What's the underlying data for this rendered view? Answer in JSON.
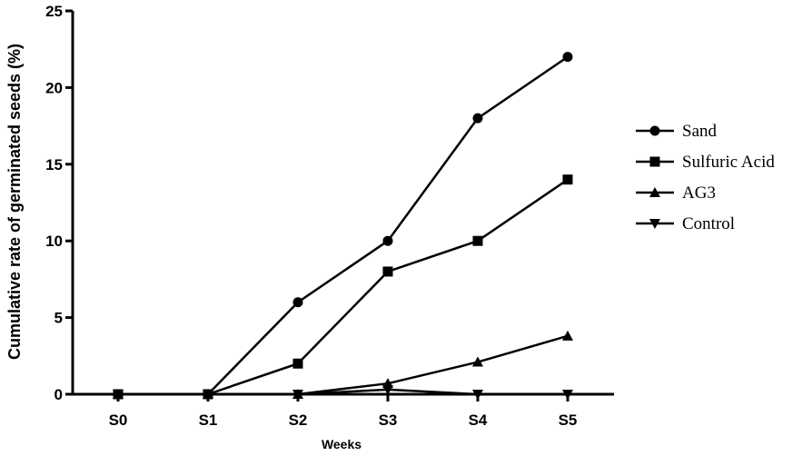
{
  "chart_data": {
    "type": "line",
    "title": "",
    "xlabel": "Weeks",
    "ylabel": "Cumulative rate of germinated seeds (%)",
    "categories": [
      "S0",
      "S1",
      "S2",
      "S3",
      "S4",
      "S5"
    ],
    "ylim": [
      0,
      25
    ],
    "yticks": [
      0,
      5,
      10,
      15,
      20,
      25
    ],
    "grid": false,
    "legend_position": "right",
    "series": [
      {
        "name": "Sand",
        "marker": "circle",
        "values": [
          0,
          0,
          6,
          10,
          18,
          22
        ]
      },
      {
        "name": "Sulfuric Acid",
        "marker": "square",
        "values": [
          0,
          0,
          2,
          8,
          10,
          14
        ]
      },
      {
        "name": "AG3",
        "marker": "triangle-up",
        "values": [
          0,
          0,
          0,
          0.7,
          2.1,
          3.8
        ]
      },
      {
        "name": "Control",
        "marker": "triangle-down",
        "values": [
          0,
          0,
          0,
          0.3,
          0,
          0
        ]
      }
    ]
  }
}
